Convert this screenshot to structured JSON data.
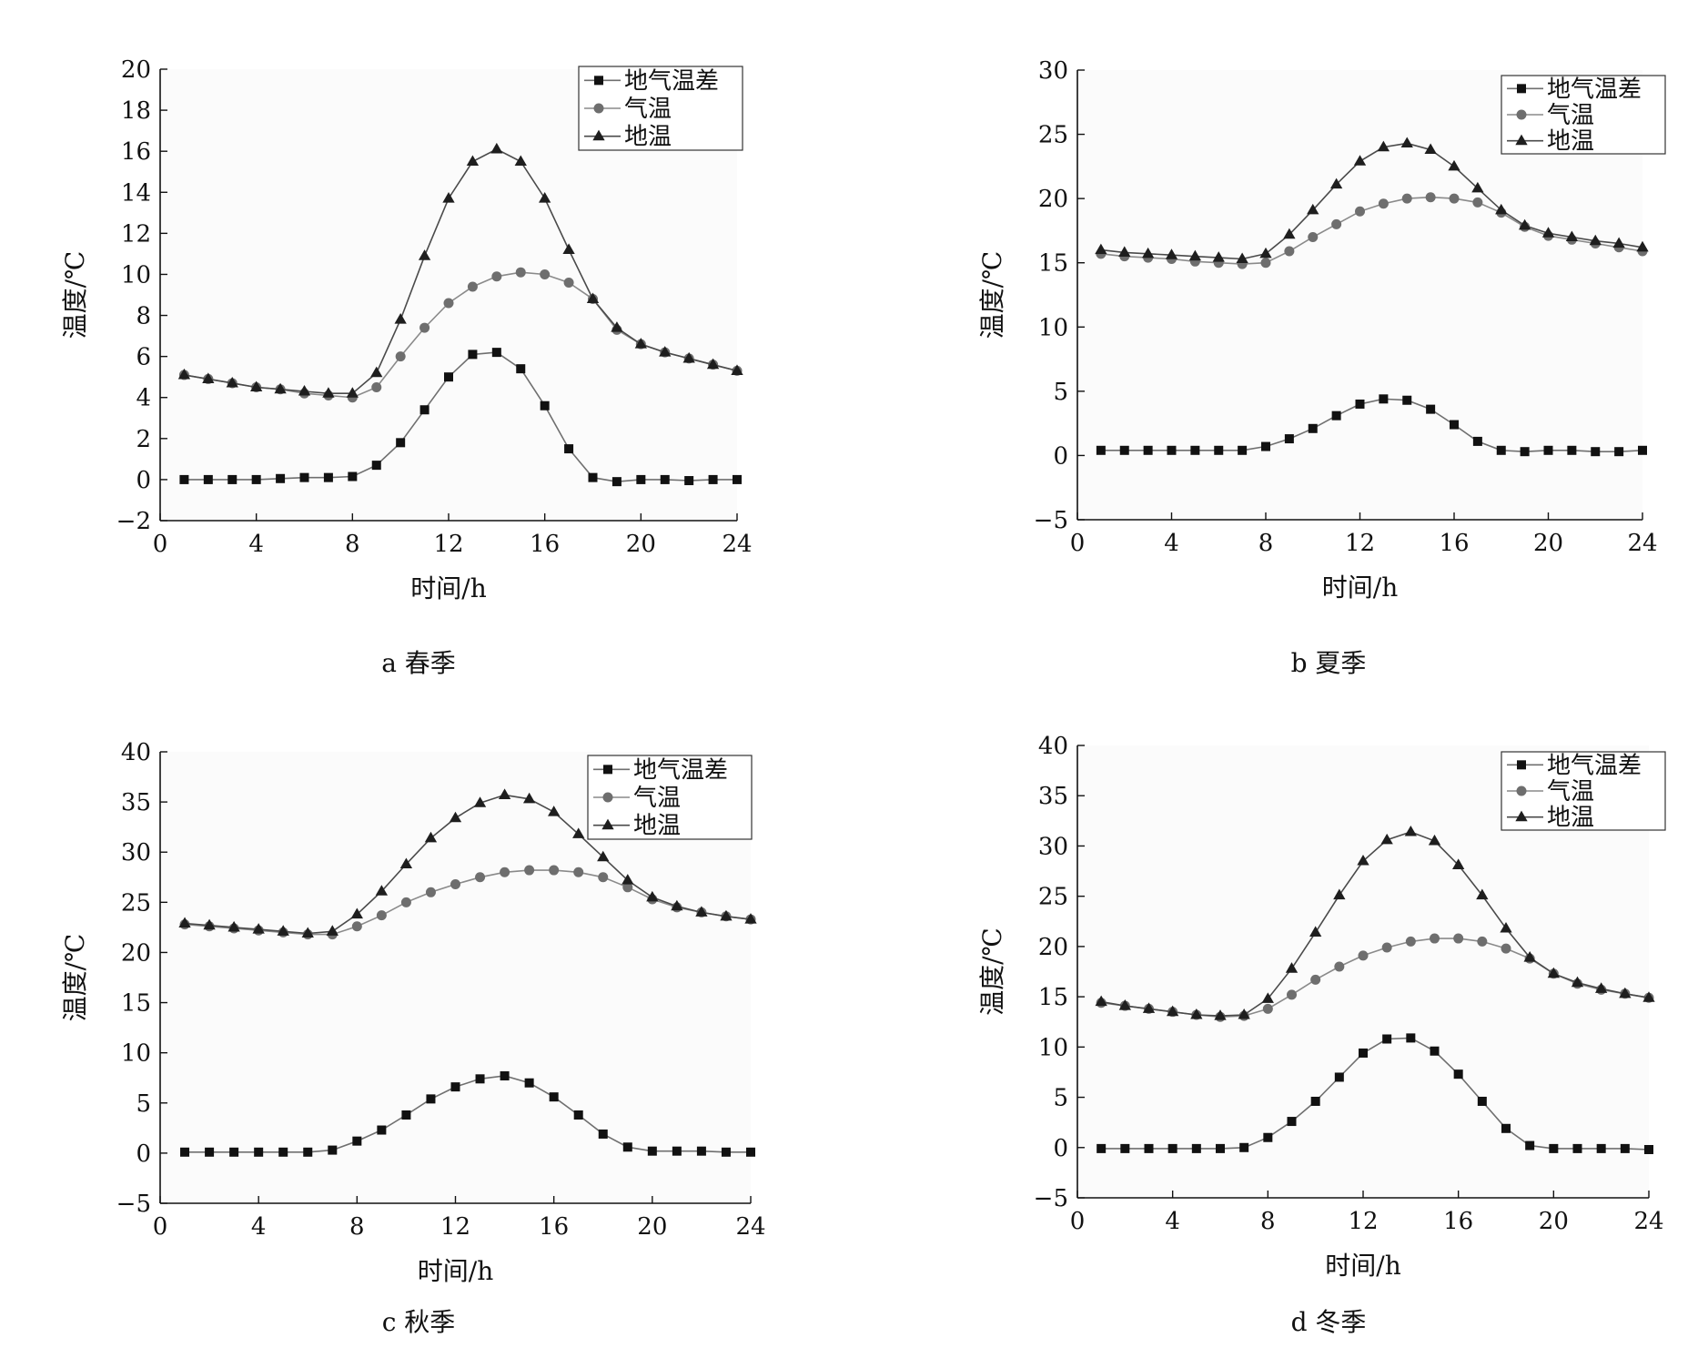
{
  "chart_data": [
    {
      "type": "line",
      "caption": "a 春季",
      "xlabel": "时间/h",
      "ylabel": "温度/℃",
      "xlim": [
        0,
        24
      ],
      "ylim": [
        -2,
        20
      ],
      "xticks": [
        "0",
        "4",
        "8",
        "12",
        "16",
        "20",
        "24"
      ],
      "yticks": [
        "−2",
        "0",
        "2",
        "4",
        "6",
        "8",
        "10",
        "12",
        "14",
        "16",
        "18",
        "20"
      ],
      "legend_position": "top-right",
      "x": [
        1,
        2,
        3,
        4,
        5,
        6,
        7,
        8,
        9,
        10,
        11,
        12,
        13,
        14,
        15,
        16,
        17,
        18,
        19,
        20,
        21,
        22,
        23,
        24
      ],
      "series": [
        {
          "name": "地气温差",
          "marker": "square",
          "values": [
            0.0,
            0.0,
            0.0,
            0.0,
            0.05,
            0.1,
            0.1,
            0.15,
            0.7,
            1.8,
            3.4,
            5.0,
            6.1,
            6.2,
            5.4,
            3.6,
            1.5,
            0.1,
            -0.1,
            0.0,
            0.0,
            -0.05,
            0.0,
            0.0
          ]
        },
        {
          "name": "气温",
          "marker": "circle",
          "values": [
            5.1,
            4.9,
            4.7,
            4.5,
            4.4,
            4.2,
            4.1,
            4.0,
            4.5,
            6.0,
            7.4,
            8.6,
            9.4,
            9.9,
            10.1,
            10.0,
            9.6,
            8.8,
            7.3,
            6.6,
            6.2,
            5.9,
            5.6,
            5.3
          ]
        },
        {
          "name": "地温",
          "marker": "triangle",
          "values": [
            5.1,
            4.9,
            4.7,
            4.5,
            4.4,
            4.3,
            4.2,
            4.2,
            5.2,
            7.8,
            10.9,
            13.7,
            15.5,
            16.1,
            15.5,
            13.7,
            11.2,
            8.8,
            7.4,
            6.6,
            6.2,
            5.9,
            5.6,
            5.3
          ]
        }
      ]
    },
    {
      "type": "line",
      "caption": "b 夏季",
      "xlabel": "时间/h",
      "ylabel": "温度/℃",
      "xlim": [
        0,
        24
      ],
      "ylim": [
        -5,
        30
      ],
      "xticks": [
        "0",
        "4",
        "8",
        "12",
        "16",
        "20",
        "24"
      ],
      "yticks": [
        "−5",
        "0",
        "5",
        "10",
        "15",
        "20",
        "25",
        "30"
      ],
      "legend_position": "top-right",
      "x": [
        1,
        2,
        3,
        4,
        5,
        6,
        7,
        8,
        9,
        10,
        11,
        12,
        13,
        14,
        15,
        16,
        17,
        18,
        19,
        20,
        21,
        22,
        23,
        24
      ],
      "series": [
        {
          "name": "地气温差",
          "marker": "square",
          "values": [
            0.4,
            0.4,
            0.4,
            0.4,
            0.4,
            0.4,
            0.4,
            0.7,
            1.3,
            2.1,
            3.1,
            4.0,
            4.4,
            4.3,
            3.6,
            2.4,
            1.1,
            0.4,
            0.3,
            0.4,
            0.4,
            0.3,
            0.3,
            0.4
          ]
        },
        {
          "name": "气温",
          "marker": "circle",
          "values": [
            15.7,
            15.5,
            15.4,
            15.3,
            15.1,
            15.0,
            14.9,
            15.0,
            15.9,
            17.0,
            18.0,
            19.0,
            19.6,
            20.0,
            20.1,
            20.0,
            19.7,
            18.9,
            17.8,
            17.1,
            16.8,
            16.5,
            16.2,
            15.9
          ]
        },
        {
          "name": "地温",
          "marker": "triangle",
          "values": [
            16.0,
            15.8,
            15.7,
            15.6,
            15.5,
            15.4,
            15.3,
            15.7,
            17.2,
            19.1,
            21.1,
            22.9,
            24.0,
            24.3,
            23.8,
            22.5,
            20.8,
            19.1,
            17.9,
            17.3,
            17.0,
            16.7,
            16.5,
            16.2
          ]
        }
      ]
    },
    {
      "type": "line",
      "caption": "c 秋季",
      "xlabel": "时间/h",
      "ylabel": "温度/℃",
      "xlim": [
        0,
        24
      ],
      "ylim": [
        -5,
        40
      ],
      "xticks": [
        "0",
        "4",
        "8",
        "12",
        "16",
        "20",
        "24"
      ],
      "yticks": [
        "−5",
        "0",
        "5",
        "10",
        "15",
        "20",
        "25",
        "30",
        "35",
        "40"
      ],
      "legend_position": "top-right",
      "x": [
        1,
        2,
        3,
        4,
        5,
        6,
        7,
        8,
        9,
        10,
        11,
        12,
        13,
        14,
        15,
        16,
        17,
        18,
        19,
        20,
        21,
        22,
        23,
        24
      ],
      "series": [
        {
          "name": "地气温差",
          "marker": "square",
          "values": [
            0.1,
            0.1,
            0.1,
            0.1,
            0.1,
            0.1,
            0.3,
            1.2,
            2.3,
            3.8,
            5.4,
            6.6,
            7.4,
            7.7,
            7.0,
            5.6,
            3.8,
            1.9,
            0.6,
            0.2,
            0.2,
            0.2,
            0.1,
            0.1
          ]
        },
        {
          "name": "气温",
          "marker": "circle",
          "values": [
            22.8,
            22.6,
            22.4,
            22.2,
            22.0,
            21.8,
            21.8,
            22.6,
            23.7,
            25.0,
            26.0,
            26.8,
            27.5,
            28.0,
            28.2,
            28.2,
            28.0,
            27.5,
            26.5,
            25.3,
            24.5,
            24.0,
            23.6,
            23.3
          ]
        },
        {
          "name": "地温",
          "marker": "triangle",
          "values": [
            22.9,
            22.7,
            22.5,
            22.3,
            22.1,
            21.9,
            22.1,
            23.8,
            26.1,
            28.8,
            31.4,
            33.4,
            34.9,
            35.7,
            35.3,
            34.0,
            31.8,
            29.5,
            27.2,
            25.5,
            24.6,
            24.0,
            23.6,
            23.3
          ]
        }
      ]
    },
    {
      "type": "line",
      "caption": "d 冬季",
      "xlabel": "时间/h",
      "ylabel": "温度/℃",
      "xlim": [
        0,
        24
      ],
      "ylim": [
        -5,
        40
      ],
      "xticks": [
        "0",
        "4",
        "8",
        "12",
        "16",
        "20",
        "24"
      ],
      "yticks": [
        "−5",
        "0",
        "5",
        "10",
        "15",
        "20",
        "25",
        "30",
        "35",
        "40"
      ],
      "legend_position": "top-right",
      "x": [
        1,
        2,
        3,
        4,
        5,
        6,
        7,
        8,
        9,
        10,
        11,
        12,
        13,
        14,
        15,
        16,
        17,
        18,
        19,
        20,
        21,
        22,
        23,
        24
      ],
      "series": [
        {
          "name": "地气温差",
          "marker": "square",
          "values": [
            -0.1,
            -0.1,
            -0.1,
            -0.1,
            -0.1,
            -0.1,
            0.0,
            1.0,
            2.6,
            4.6,
            7.0,
            9.4,
            10.8,
            10.9,
            9.6,
            7.3,
            4.6,
            1.9,
            0.2,
            -0.1,
            -0.1,
            -0.1,
            -0.1,
            -0.2
          ]
        },
        {
          "name": "气温",
          "marker": "circle",
          "values": [
            14.4,
            14.1,
            13.8,
            13.5,
            13.2,
            13.0,
            13.1,
            13.8,
            15.2,
            16.7,
            18.0,
            19.1,
            19.9,
            20.5,
            20.8,
            20.8,
            20.5,
            19.8,
            18.8,
            17.3,
            16.3,
            15.7,
            15.3,
            14.9
          ]
        },
        {
          "name": "地温",
          "marker": "triangle",
          "values": [
            14.5,
            14.1,
            13.8,
            13.5,
            13.2,
            13.1,
            13.2,
            14.8,
            17.8,
            21.4,
            25.1,
            28.5,
            30.6,
            31.4,
            30.5,
            28.1,
            25.1,
            21.8,
            18.9,
            17.3,
            16.4,
            15.8,
            15.3,
            14.9
          ]
        }
      ]
    }
  ]
}
